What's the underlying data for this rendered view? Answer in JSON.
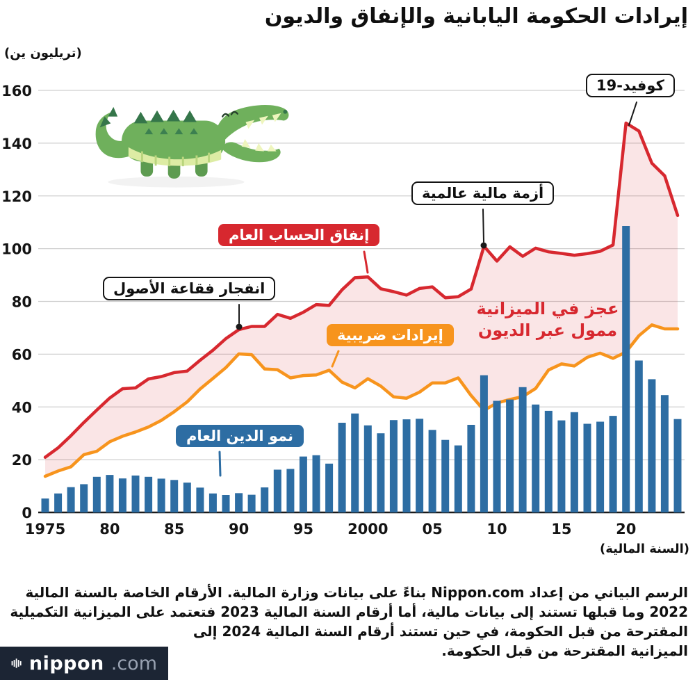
{
  "title": "إيرادات الحكومة اليابانية والإنفاق والديون",
  "y_axis_unit": "(تريليون ين)",
  "x_axis_unit": "(السنة المالية)",
  "annotations": {
    "covid": "كوفيد-19",
    "financial_crisis": "أزمة مالية عالمية",
    "spending": "إنفاق الحساب العام",
    "bubble_burst": "انفجار فقاعة الأصول",
    "tax_revenue": "إيرادات ضريبية",
    "deficit_line1": "عجز في الميزانية",
    "deficit_line2": "ممول عبر الديون",
    "debt_growth": "نمو الدين العام"
  },
  "colors": {
    "spending": "#d7282f",
    "tax": "#f7941d",
    "bonds": "#2d6da3",
    "deficit_fill_base": "#d7282f",
    "grid": "#cfcfcf",
    "axis": "#1a1a1a",
    "logo_bg": "#1c2534"
  },
  "chart_data": {
    "type": "combo",
    "x": [
      1975,
      1976,
      1977,
      1978,
      1979,
      1980,
      1981,
      1982,
      1983,
      1984,
      1985,
      1986,
      1987,
      1988,
      1989,
      1990,
      1991,
      1992,
      1993,
      1994,
      1995,
      1996,
      1997,
      1998,
      1999,
      2000,
      2001,
      2002,
      2003,
      2004,
      2005,
      2006,
      2007,
      2008,
      2009,
      2010,
      2011,
      2012,
      2013,
      2014,
      2015,
      2016,
      2017,
      2018,
      2019,
      2020,
      2021,
      2022,
      2023,
      2024
    ],
    "xticks": [
      1975,
      1980,
      1985,
      1990,
      1995,
      2000,
      2005,
      2010,
      2015,
      2020
    ],
    "xtick_labels": [
      "1975",
      "80",
      "85",
      "90",
      "95",
      "2000",
      "05",
      "10",
      "15",
      "20"
    ],
    "ylim": [
      0,
      160
    ],
    "ytick_step": 20,
    "series": [
      {
        "id": "spending",
        "name": "إنفاق الحساب العام",
        "type": "line",
        "color": "#d7282f",
        "values": [
          20.9,
          24.5,
          29.1,
          34.1,
          38.8,
          43.4,
          46.9,
          47.2,
          50.6,
          51.5,
          53.0,
          53.6,
          57.7,
          61.5,
          65.9,
          69.3,
          70.5,
          70.5,
          75.1,
          73.6,
          75.9,
          78.8,
          78.5,
          84.4,
          89.0,
          89.3,
          84.8,
          83.7,
          82.4,
          84.9,
          85.5,
          81.4,
          81.8,
          84.7,
          100.9,
          95.3,
          100.7,
          97.1,
          100.2,
          98.8,
          98.2,
          97.5,
          98.1,
          99.0,
          101.4,
          147.6,
          144.6,
          132.4,
          127.6,
          112.6
        ]
      },
      {
        "id": "tax",
        "name": "إيرادات ضريبية",
        "type": "line",
        "color": "#f7941d",
        "values": [
          13.7,
          15.7,
          17.3,
          21.9,
          23.2,
          26.8,
          28.9,
          30.5,
          32.4,
          34.9,
          38.2,
          41.9,
          46.8,
          50.8,
          54.9,
          60.1,
          59.8,
          54.4,
          54.1,
          51.0,
          51.9,
          52.1,
          53.9,
          49.4,
          47.2,
          50.7,
          47.9,
          43.8,
          43.3,
          45.6,
          49.1,
          49.1,
          51.0,
          44.3,
          38.7,
          41.5,
          42.8,
          43.9,
          47.0,
          54.0,
          56.3,
          55.5,
          58.8,
          60.4,
          58.4,
          60.8,
          67.0,
          71.1,
          69.6,
          69.6
        ]
      },
      {
        "id": "bonds",
        "name": "نمو الدين العام",
        "type": "bar",
        "color": "#2d6da3",
        "values": [
          5.3,
          7.2,
          9.6,
          10.7,
          13.5,
          14.2,
          12.9,
          14.0,
          13.5,
          12.8,
          12.3,
          11.3,
          9.4,
          7.2,
          6.6,
          7.3,
          6.7,
          9.5,
          16.2,
          16.5,
          21.2,
          21.7,
          18.5,
          34.0,
          37.5,
          33.0,
          30.0,
          35.0,
          35.3,
          35.5,
          31.3,
          27.5,
          25.4,
          33.2,
          52.0,
          42.3,
          42.8,
          47.5,
          40.9,
          38.5,
          34.9,
          38.0,
          33.6,
          34.4,
          36.6,
          108.6,
          57.6,
          50.5,
          44.5,
          35.4
        ]
      }
    ],
    "area_between": {
      "upper": "spending",
      "lower": "tax",
      "label": "عجز في الميزانية ممول عبر الديون"
    }
  },
  "footer": {
    "lines": [
      "الرسم البياني من إعداد Nippon.com بناءً على بيانات وزارة المالية. الأرقام الخاصة بالسنة المالية",
      "2022 وما قبلها تستند إلى بيانات مالية، أما أرقام السنة المالية 2023 فتعتمد على الميزانية التكميلية",
      "المقترحة من قبل الحكومة، في حين تستند أرقام السنة المالية 2024 إلى",
      "الميزانية المقترحة من قبل الحكومة."
    ],
    "logo_text": "nippon",
    "logo_suffix": ".com"
  }
}
